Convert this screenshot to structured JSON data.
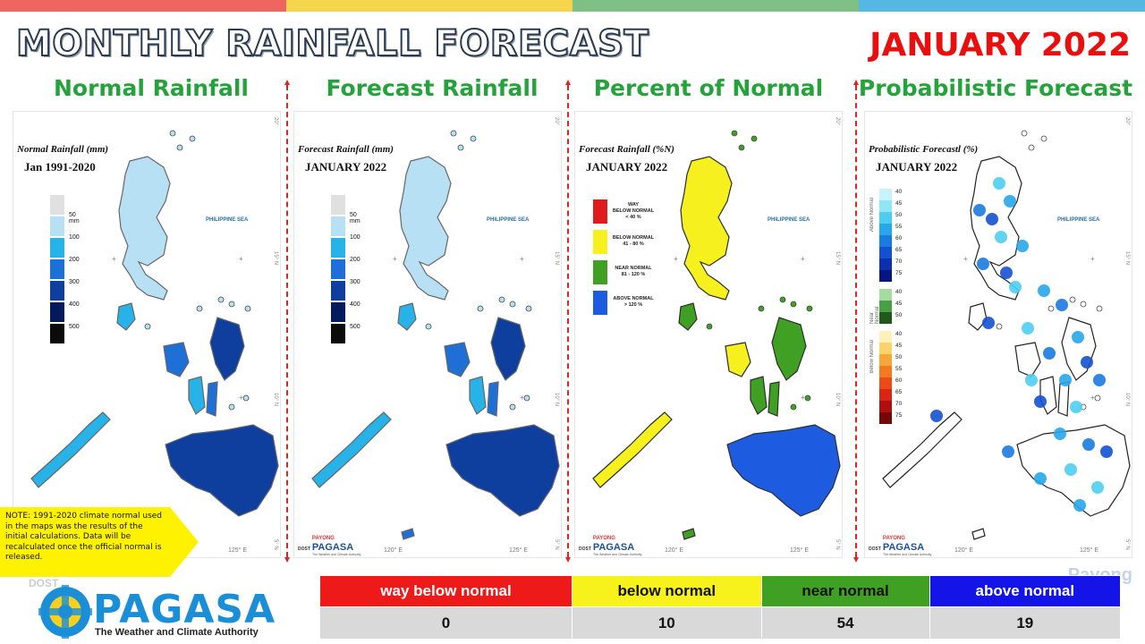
{
  "header": {
    "title": "MONTHLY RAINFALL FORECAST",
    "month": "JANUARY 2022",
    "top_colors": [
      "#f0655f",
      "#f4d54c",
      "#7ebf86",
      "#55b7e3"
    ]
  },
  "panels": [
    {
      "title": "Normal Rainfall",
      "caption": "Normal Rainfall (mm)",
      "subcaption": "Jan 1991-2020",
      "map_style": "rainfall"
    },
    {
      "title": "Forecast Rainfall",
      "caption": "Forecast Rainfall (mm)",
      "subcaption": "JANUARY 2022",
      "map_style": "rainfall"
    },
    {
      "title": "Percent of Normal",
      "caption": "Forecast Rainfall (%N)",
      "subcaption": "JANUARY 2022",
      "map_style": "category"
    },
    {
      "title": "Probabilistic Forecast",
      "caption": "Probabilistic Forecastl (%)",
      "subcaption": "JANUARY 2022",
      "map_style": "probabilistic"
    }
  ],
  "map_labels": {
    "sea": "PHILIPPINE SEA",
    "lon_120": "120° E",
    "lon_125": "125° E",
    "lat_15": "15° N",
    "lat_10": "10° N",
    "lat_20": "20°",
    "lat_5": "5° N"
  },
  "rain_scale": {
    "labels": [
      "50 mm",
      "100",
      "200",
      "300",
      "400",
      "500"
    ],
    "colors": [
      "#e0e0e0",
      "#b8e0f5",
      "#27b3e8",
      "#1e6fd6",
      "#0f3f9e",
      "#041a5c",
      "#0b0b0b"
    ]
  },
  "category_legend": [
    {
      "line1": "WAY",
      "line2": "BELOW NORMAL",
      "line3": "< 40 %",
      "color": "#e01b1b"
    },
    {
      "line1": "BELOW NORMAL",
      "line2": "41 - 80 %",
      "line3": "",
      "color": "#f5f01e"
    },
    {
      "line1": "NEAR NORMAL",
      "line2": "81 - 120 %",
      "line3": "",
      "color": "#3fa023"
    },
    {
      "line1": "ABOVE NORMAL",
      "line2": "> 120 %",
      "line3": "",
      "color": "#1d5be0"
    }
  ],
  "prob_legend": {
    "above_label": "Above Normal",
    "near_label": "Near Normal",
    "below_label": "Below Normal",
    "above_values": [
      "40",
      "45",
      "50",
      "55",
      "60",
      "65",
      "70",
      "75"
    ],
    "near_values": [
      "40",
      "45",
      "50"
    ],
    "below_values": [
      "40",
      "45",
      "50",
      "55",
      "60",
      "65",
      "70",
      "75"
    ],
    "above_colors": [
      "#c9f3fb",
      "#8ee6f6",
      "#4fcdf1",
      "#27a6ea",
      "#1a7be0",
      "#1451d0",
      "#0c2fb0",
      "#061680"
    ],
    "near_colors": [
      "#a4dca0",
      "#4b9e45",
      "#1f5a1c"
    ],
    "below_colors": [
      "#fff1b8",
      "#fbd36b",
      "#f7a63a",
      "#f37a22",
      "#ee4a18",
      "#d92516",
      "#b00f10",
      "#740808"
    ]
  },
  "small_logo": {
    "dost": "DOST",
    "payong": "PAYONG",
    "pagasa": "PAGASA",
    "tagline": "The Weather and Climate Authority"
  },
  "note": "NOTE: 1991-2020 climate normal used in the maps was the results of the initial calculations. Data will be recalculated once the official normal is released.",
  "big_logo": {
    "dost": "DOST",
    "word": "PAGASA",
    "tagline": "The Weather and Climate Authority"
  },
  "watermark": "Payong",
  "summary": {
    "headers": [
      "way below normal",
      "below normal",
      "near normal",
      "above normal"
    ],
    "values": [
      "0",
      "10",
      "54",
      "19"
    ],
    "colors": [
      "#ee1a1a",
      "#f7f21c",
      "#3fa023",
      "#1414e8"
    ],
    "text_colors": [
      "#ffffff",
      "#111111",
      "#111111",
      "#ffffff"
    ]
  }
}
